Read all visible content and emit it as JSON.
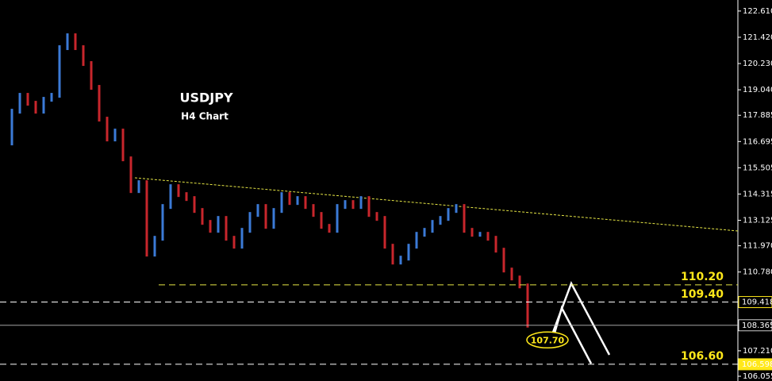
{
  "chart_data": {
    "type": "price-bars",
    "title": "USDJPY",
    "subtitle": "H4 Chart",
    "values": [
      116.63,
      118.07,
      118.79,
      118.43,
      118.07,
      118.61,
      118.79,
      120.95,
      121.49,
      120.95,
      120.23,
      119.15,
      117.71,
      116.81,
      117.17,
      115.91,
      114.47,
      114.83,
      111.59,
      112.31,
      113.75,
      114.65,
      114.29,
      114.11,
      113.57,
      113.03,
      112.67,
      113.21,
      112.31,
      111.95,
      112.67,
      113.39,
      113.75,
      112.85,
      113.57,
      114.29,
      113.93,
      114.11,
      113.75,
      113.39,
      112.85,
      112.67,
      113.75,
      113.93,
      113.75,
      114.11,
      113.39,
      113.21,
      111.95,
      111.23,
      111.41,
      111.95,
      112.49,
      112.67,
      113.03,
      113.21,
      113.57,
      113.75,
      112.67,
      112.49,
      112.49,
      112.31,
      111.77,
      110.87,
      110.51,
      110.15,
      108.37
    ],
    "up_color": "#3b7ad6",
    "down_color": "#c8262c",
    "ylim": [
      105.84,
      123.11
    ],
    "yticks": [
      {
        "value": 122.61,
        "label": "122.610"
      },
      {
        "value": 121.42,
        "label": "121.420"
      },
      {
        "value": 120.23,
        "label": "120.230"
      },
      {
        "value": 119.04,
        "label": "119.040"
      },
      {
        "value": 117.885,
        "label": "117.885"
      },
      {
        "value": 116.695,
        "label": "116.695"
      },
      {
        "value": 115.505,
        "label": "115.505"
      },
      {
        "value": 114.315,
        "label": "114.315"
      },
      {
        "value": 113.125,
        "label": "113.125"
      },
      {
        "value": 111.97,
        "label": "111.970"
      },
      {
        "value": 110.78,
        "label": "110.780"
      },
      {
        "value": 107.21,
        "label": "107.210"
      },
      {
        "value": 106.055,
        "label": "106.055"
      }
    ],
    "current_price": {
      "value": 108.365,
      "label": "108.365"
    },
    "price_labels": [
      {
        "value": 109.418,
        "label": "109.418"
      },
      {
        "value": 106.598,
        "label": "106.598"
      }
    ],
    "levels": [
      {
        "value": 110.2,
        "label": "110.20"
      },
      {
        "value": 109.4,
        "label": "109.40"
      },
      {
        "value": 106.6,
        "label": "106.60"
      }
    ],
    "annotation": {
      "value": 107.7,
      "label": "107.70"
    }
  }
}
